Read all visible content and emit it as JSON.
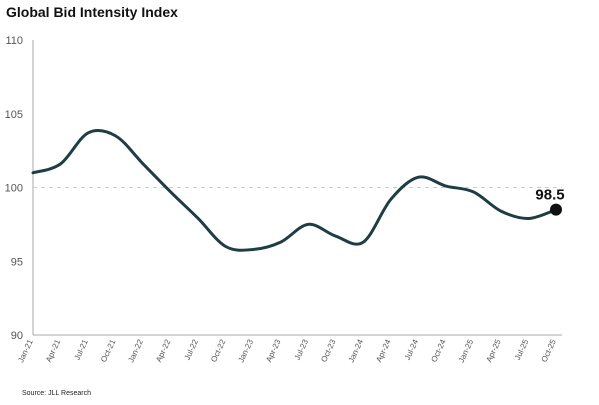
{
  "title": "Global Bid Intensity Index",
  "source": "Source: JLL Research",
  "colors": {
    "line": "#1f3d45",
    "reference": "#cccccc",
    "axis": "#aaaaaa"
  },
  "chart_data": {
    "type": "line",
    "title": "Global Bid Intensity Index",
    "xlabel": "",
    "ylabel": "",
    "ylim": [
      90,
      110
    ],
    "yticks": [
      90,
      95,
      100,
      105,
      110
    ],
    "categories": [
      "Jan-21",
      "Apr-21",
      "Jul-21",
      "Oct-21",
      "Jan-22",
      "Apr-22",
      "Jul-22",
      "Oct-22",
      "Jan-23",
      "Apr-23",
      "Jul-23",
      "Oct-23",
      "Jan-24",
      "Apr-24",
      "Jul-24",
      "Oct-24",
      "Jan-25",
      "Apr-25",
      "Jul-25",
      "Oct-25"
    ],
    "series": [
      {
        "values": [
          101.0,
          101.6,
          103.7,
          103.5,
          101.6,
          99.7,
          97.9,
          96.0,
          95.8,
          96.3,
          97.5,
          96.7,
          96.3,
          99.2,
          100.7,
          100.1,
          99.7,
          98.4,
          97.9,
          98.5
        ]
      }
    ],
    "reference_line": 100,
    "grid": false,
    "end_label": "98.5"
  }
}
